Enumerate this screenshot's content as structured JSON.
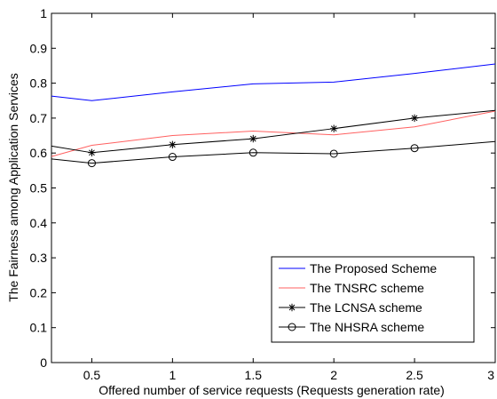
{
  "chart_data": {
    "type": "line",
    "title": "",
    "xlabel": "Offered number of service requests (Requests generation rate)",
    "ylabel": "The Fairness among Application Services",
    "xlim": [
      0.25,
      3
    ],
    "ylim": [
      0,
      1
    ],
    "xticks": [
      0.5,
      1,
      1.5,
      2,
      2.5,
      3
    ],
    "xtick_labels": [
      "0.5",
      "1",
      "1.5",
      "2",
      "2.5",
      "3"
    ],
    "yticks": [
      0,
      0.1,
      0.2,
      0.3,
      0.4,
      0.5,
      0.6,
      0.7,
      0.8,
      0.9,
      1
    ],
    "ytick_labels": [
      "0",
      "0.1",
      "0.2",
      "0.3",
      "0.4",
      "0.5",
      "0.6",
      "0.7",
      "0.8",
      "0.9",
      "1"
    ],
    "grid": false,
    "legend_position": "bottom-right",
    "series": [
      {
        "name": "The Proposed Scheme",
        "color": "#0000ff",
        "marker": "none",
        "x": [
          0.25,
          0.5,
          1,
          1.5,
          2,
          2.5,
          3
        ],
        "y": [
          0.763,
          0.75,
          0.775,
          0.798,
          0.803,
          0.828,
          0.855
        ]
      },
      {
        "name": "The TNSRC scheme",
        "color": "#ff6060",
        "marker": "none",
        "x": [
          0.25,
          0.5,
          1,
          1.5,
          2,
          2.5,
          3
        ],
        "y": [
          0.59,
          0.622,
          0.65,
          0.663,
          0.652,
          0.675,
          0.72
        ]
      },
      {
        "name": "The LCNSA scheme",
        "color": "#000000",
        "marker": "asterisk",
        "x": [
          0.25,
          0.5,
          1,
          1.5,
          2,
          2.5,
          3
        ],
        "y": [
          0.62,
          0.601,
          0.624,
          0.641,
          0.67,
          0.7,
          0.722
        ]
      },
      {
        "name": "The NHSRA scheme",
        "color": "#000000",
        "marker": "circle",
        "x": [
          0.25,
          0.5,
          1,
          1.5,
          2,
          2.5,
          3
        ],
        "y": [
          0.583,
          0.571,
          0.589,
          0.601,
          0.598,
          0.614,
          0.633
        ]
      }
    ]
  }
}
